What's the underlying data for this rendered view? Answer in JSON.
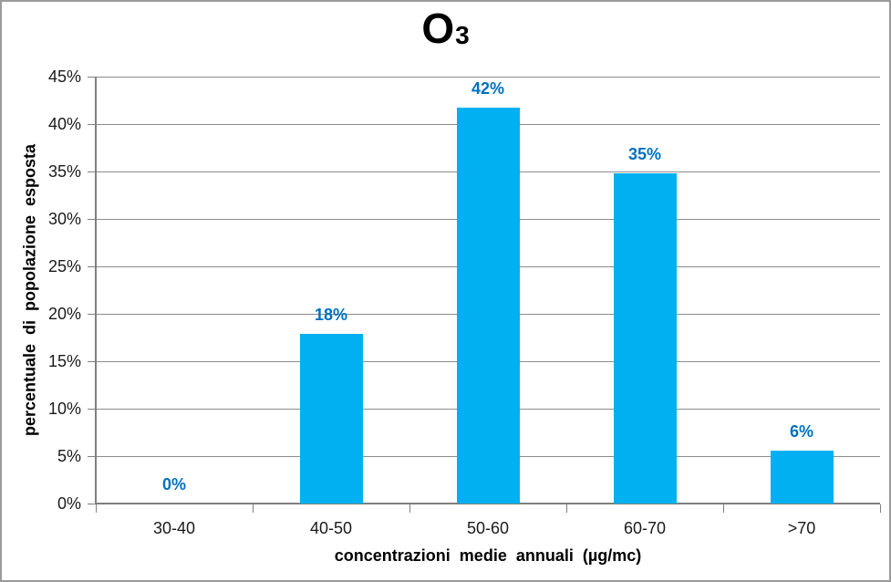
{
  "chart_data": {
    "type": "bar",
    "title_main": "O",
    "title_subscript": "3",
    "categories": [
      "30-40",
      "40-50",
      "50-60",
      "60-70",
      ">70"
    ],
    "values": [
      0,
      17.9,
      41.7,
      34.8,
      5.6
    ],
    "bar_labels": [
      "0%",
      "18%",
      "42%",
      "35%",
      "6%"
    ],
    "xlabel": "concentrazioni medie annuali (µg/mc)",
    "ylabel": "percentuale di popolazione esposta",
    "ylim": [
      0,
      45
    ],
    "ytick_step": 5,
    "ytick_suffix": "%",
    "grid": true,
    "legend_position": "none",
    "colors": {
      "bar": "#00B0F0",
      "data_label": "#0070C0",
      "gridline": "#8C8C8C",
      "axis": "#7F7F7F",
      "tick_text": "#1A1A1A",
      "title_text": "#000000",
      "frame_border": "#9A9A9A",
      "background": "#FFFFFF"
    }
  }
}
